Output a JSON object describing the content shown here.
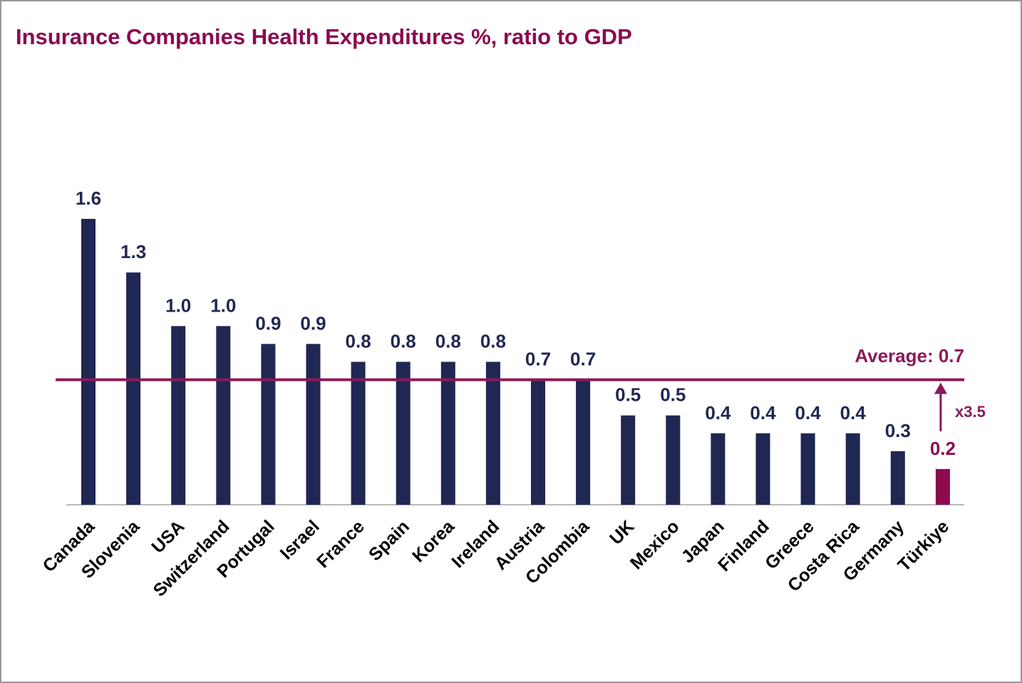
{
  "chart_data": {
    "type": "bar",
    "title": "Insurance Companies Health Expenditures %, ratio to GDP",
    "categories": [
      "Canada",
      "Slovenia",
      "USA",
      "Switzerland",
      "Portugal",
      "Israel",
      "France",
      "Spain",
      "Korea",
      "Ireland",
      "Austria",
      "Colombia",
      "UK",
      "Mexico",
      "Japan",
      "Finland",
      "Greece",
      "Costa Rica",
      "Germany",
      "Türkiye"
    ],
    "values": [
      1.6,
      1.3,
      1.0,
      1.0,
      0.9,
      0.9,
      0.8,
      0.8,
      0.8,
      0.8,
      0.7,
      0.7,
      0.5,
      0.5,
      0.4,
      0.4,
      0.4,
      0.4,
      0.3,
      0.2
    ],
    "value_labels": [
      "1.6",
      "1.3",
      "1.0",
      "1.0",
      "0.9",
      "0.9",
      "0.8",
      "0.8",
      "0.8",
      "0.8",
      "0.7",
      "0.7",
      "0.5",
      "0.5",
      "0.4",
      "0.4",
      "0.4",
      "0.4",
      "0.3",
      "0.2"
    ],
    "colors": [
      "#1f2752",
      "#1f2752",
      "#1f2752",
      "#1f2752",
      "#1f2752",
      "#1f2752",
      "#1f2752",
      "#1f2752",
      "#1f2752",
      "#1f2752",
      "#1f2752",
      "#1f2752",
      "#1f2752",
      "#1f2752",
      "#1f2752",
      "#1f2752",
      "#1f2752",
      "#1f2752",
      "#1f2752",
      "#8b0a50"
    ],
    "ylim": [
      0,
      1.6
    ],
    "average": {
      "label": "Average: 0.7",
      "value": 0.7,
      "color": "#8b1a5a"
    },
    "ratio_annotation": {
      "label": "x3.5",
      "color": "#8b1a5a"
    }
  }
}
